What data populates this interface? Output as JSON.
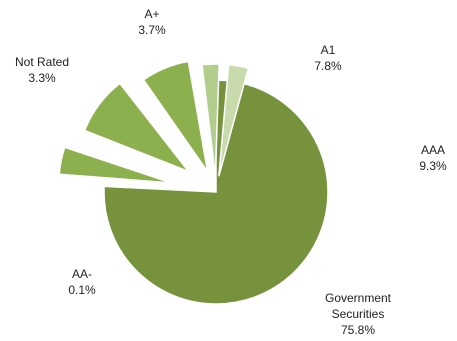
{
  "chart_data": {
    "type": "pie",
    "title": "",
    "exploded": true,
    "slices": [
      {
        "label": "Government Securities",
        "value": 75.8,
        "value_label": "75.8%",
        "color": "#76923c",
        "exploded": false
      },
      {
        "label": "AA-",
        "value": 0.1,
        "value_label": "0.1%",
        "color": "#8db04f",
        "exploded": true
      },
      {
        "label": "AAA",
        "value": 9.3,
        "value_label": "9.3%",
        "color": "#8db04f",
        "exploded": true
      },
      {
        "label": "A1",
        "value": 7.8,
        "value_label": "7.8%",
        "color": "#8db04f",
        "exploded": true
      },
      {
        "label": "Not Rated",
        "value": 3.3,
        "value_label": "3.3%",
        "color": "#b3cd8e",
        "exploded": true
      },
      {
        "label": "A+",
        "value": 3.7,
        "value_label": "3.7%",
        "color": "#c9dbac",
        "exploded": true
      }
    ],
    "legend": "none"
  }
}
